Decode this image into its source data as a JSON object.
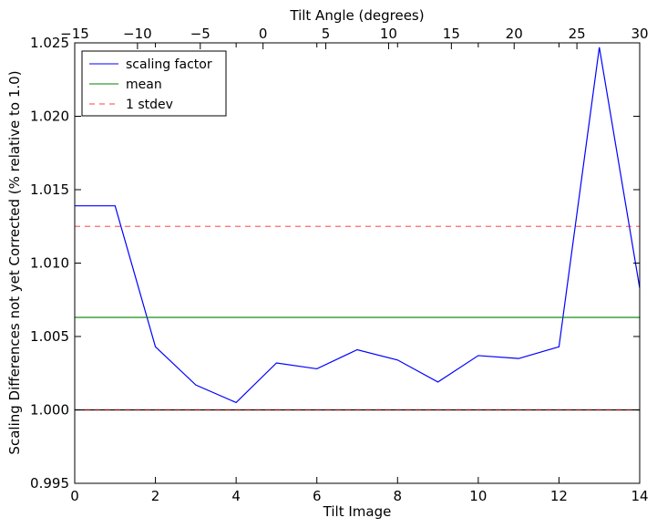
{
  "chart_data": {
    "type": "line",
    "xlabel": "Tilt Image",
    "ylabel": "Scaling Differences not yet Corrected (% relative to 1.0)",
    "top_xlabel": "Tilt Angle (degrees)",
    "xlim": [
      0,
      14
    ],
    "ylim": [
      0.995,
      1.025
    ],
    "top_xlim": [
      -15,
      30
    ],
    "x_ticks": [
      0,
      2,
      4,
      6,
      8,
      10,
      12,
      14
    ],
    "x_tick_labels": [
      "0",
      "2",
      "4",
      "6",
      "8",
      "10",
      "12",
      "14"
    ],
    "y_ticks": [
      0.995,
      1.0,
      1.005,
      1.01,
      1.015,
      1.02,
      1.025
    ],
    "y_tick_labels": [
      "0.995",
      "1.000",
      "1.005",
      "1.010",
      "1.015",
      "1.020",
      "1.025"
    ],
    "top_ticks": [
      -15,
      -10,
      -5,
      0,
      5,
      10,
      15,
      20,
      25,
      30
    ],
    "top_tick_labels": [
      "−15",
      "−10",
      "−5",
      "0",
      "5",
      "10",
      "15",
      "20",
      "25",
      "30"
    ],
    "grid": false,
    "legend_position": "top-left",
    "series": [
      {
        "name": "scaling factor",
        "color": "#0000ff",
        "style": "solid",
        "x": [
          0,
          1,
          2,
          3,
          4,
          5,
          6,
          7,
          8,
          9,
          10,
          11,
          12,
          13,
          14
        ],
        "y": [
          1.0139,
          1.0139,
          1.0043,
          1.0017,
          1.0005,
          1.0032,
          1.0028,
          1.0041,
          1.0034,
          1.0019,
          1.0037,
          1.0035,
          1.0043,
          1.0247,
          1.0083
        ]
      },
      {
        "name": "mean",
        "color": "#008000",
        "style": "solid",
        "x": [
          0,
          14
        ],
        "y": [
          1.0063,
          1.0063
        ]
      },
      {
        "name": "1 stdev",
        "color": "#ff0000",
        "style": "dashed",
        "x": [
          0,
          14
        ],
        "y": [
          1.0125,
          1.0125
        ]
      },
      {
        "color": "#ff0000",
        "style": "dashed",
        "x": [
          0,
          14
        ],
        "y": [
          1.0,
          1.0
        ]
      }
    ],
    "reference_line": {
      "y": 1.0,
      "color": "#000000"
    }
  }
}
